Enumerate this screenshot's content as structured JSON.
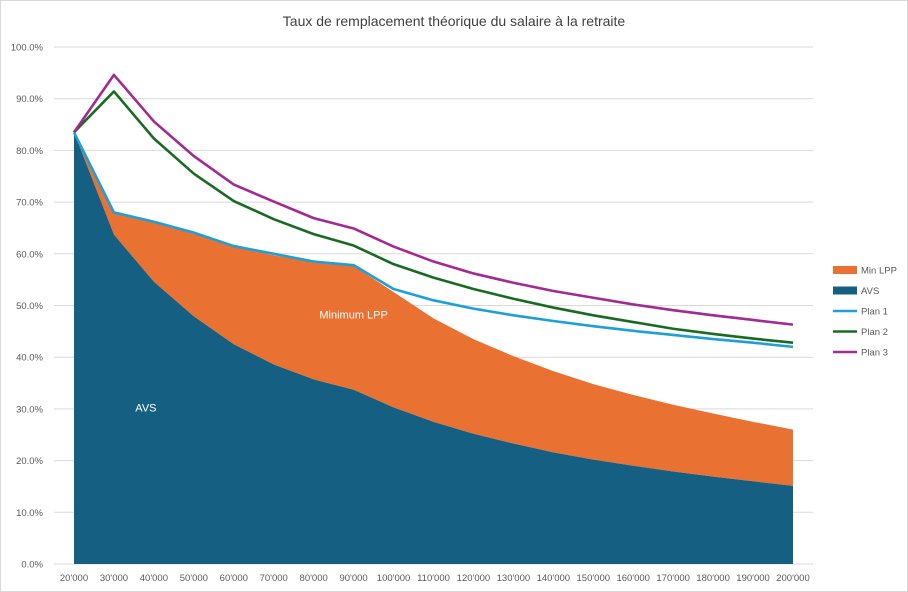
{
  "chart_data": {
    "type": "area",
    "title": "Taux de remplacement théorique du salaire à la retraite",
    "xlabel": "",
    "ylabel": "",
    "ylim": [
      0,
      100
    ],
    "grid": true,
    "legend_position": "right",
    "categories": [
      "20'000",
      "30'000",
      "40'000",
      "50'000",
      "60'000",
      "70'000",
      "80'000",
      "90'000",
      "100'000",
      "110'000",
      "120'000",
      "130'000",
      "140'000",
      "150'000",
      "160'000",
      "170'000",
      "180'000",
      "190'000",
      "200'000"
    ],
    "yticks": [
      "0.0%",
      "10.0%",
      "20.0%",
      "30.0%",
      "40.0%",
      "50.0%",
      "60.0%",
      "70.0%",
      "80.0%",
      "90.0%",
      "100.0%"
    ],
    "series": [
      {
        "name": "Min LPP",
        "kind": "area-stacked",
        "color": "#e97132",
        "values": [
          0.0,
          4.4,
          11.6,
          16.0,
          19.0,
          21.1,
          22.8,
          24.0,
          22.3,
          20.0,
          18.3,
          16.9,
          15.7,
          14.6,
          13.7,
          12.9,
          12.2,
          11.5,
          10.9
        ]
      },
      {
        "name": "AVS",
        "kind": "area",
        "color": "#156082",
        "values": [
          83.5,
          63.7,
          54.6,
          47.9,
          42.5,
          38.6,
          35.7,
          33.7,
          30.3,
          27.5,
          25.2,
          23.3,
          21.6,
          20.2,
          19.0,
          17.9,
          16.9,
          16.0,
          15.1
        ]
      },
      {
        "name": "Plan 1",
        "kind": "line",
        "color": "#1ea0d6",
        "values": [
          83.5,
          68.0,
          66.2,
          64.1,
          61.5,
          60.0,
          58.5,
          57.8,
          53.2,
          51.0,
          49.4,
          48.1,
          47.0,
          46.0,
          45.1,
          44.3,
          43.5,
          42.8,
          42.0
        ]
      },
      {
        "name": "Plan 2",
        "kind": "line",
        "color": "#196b24",
        "values": [
          83.5,
          91.4,
          82.3,
          75.5,
          70.2,
          66.7,
          63.8,
          61.6,
          58.0,
          55.4,
          53.2,
          51.3,
          49.6,
          48.1,
          46.8,
          45.5,
          44.5,
          43.6,
          42.8
        ]
      },
      {
        "name": "Plan 3",
        "kind": "line",
        "color": "#a02b93",
        "values": [
          83.5,
          94.6,
          85.6,
          78.9,
          73.4,
          70.1,
          66.9,
          64.9,
          61.4,
          58.5,
          56.2,
          54.4,
          52.8,
          51.5,
          50.2,
          49.1,
          48.1,
          47.2,
          46.3
        ]
      }
    ],
    "annotations": [
      {
        "text": "Minimum LPP",
        "x_index": 7,
        "y": 47.5
      },
      {
        "text": "AVS",
        "x_index": 1.8,
        "y": 29.5
      }
    ]
  }
}
